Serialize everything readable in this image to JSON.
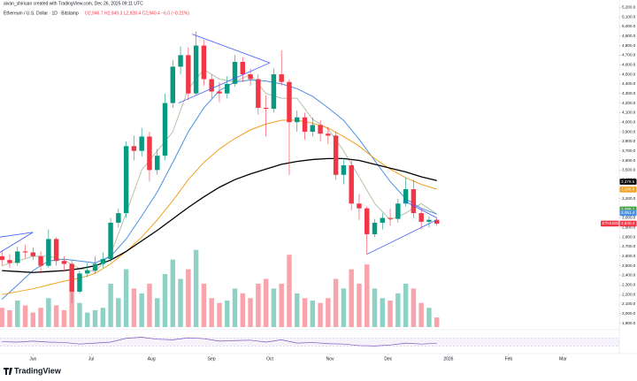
{
  "chart_data": {
    "type": "candlestick",
    "subtitle": "aivan_shiriuan created with TradingView.com, Dec 26, 2025 09:11 UTC",
    "title": "Ethereum / U.S. Dollar · 1D · Bitstamp",
    "ohlc_text": "O2,946.7 H2,949.3 L2,928.4 C2,940.4 −6.0 (−0.21%)",
    "x": [
      15,
      19,
      23,
      27,
      31,
      35,
      39,
      43,
      47,
      51,
      55,
      59,
      63,
      67,
      71,
      75,
      79,
      83,
      87,
      91,
      95,
      99,
      103,
      107,
      111,
      115,
      119,
      123,
      127,
      131,
      135,
      139,
      143,
      147,
      151,
      155,
      159,
      163,
      167,
      171,
      175,
      179,
      183,
      187,
      191,
      195,
      199,
      203,
      207,
      211,
      215,
      219,
      223,
      227,
      231,
      235,
      239
    ],
    "open": [
      2600,
      2560,
      2530,
      2650,
      2640,
      2600,
      2500,
      2780,
      2550,
      2520,
      2230,
      2420,
      2450,
      2520,
      2570,
      2950,
      3050,
      3750,
      3700,
      3850,
      3500,
      3650,
      4200,
      4580,
      4700,
      4300,
      4800,
      4450,
      4320,
      4300,
      4400,
      4630,
      4500,
      4450,
      4150,
      4140,
      4500,
      4420,
      4000,
      4050,
      3900,
      3970,
      3880,
      3860,
      3450,
      3550,
      3150,
      3100,
      2830,
      2950,
      3000,
      2990,
      3150,
      3300,
      3050,
      2960,
      2980
    ],
    "high": [
      2660,
      2620,
      2700,
      2720,
      2690,
      2650,
      2880,
      2800,
      2600,
      2560,
      2450,
      2530,
      2600,
      2640,
      3000,
      3100,
      3800,
      3860,
      3940,
      3900,
      3720,
      4300,
      4650,
      4790,
      4780,
      4950,
      4860,
      4500,
      4420,
      4480,
      4700,
      4680,
      4560,
      4500,
      4280,
      4560,
      4750,
      4450,
      4120,
      4100,
      4050,
      4020,
      3950,
      3900,
      3620,
      3600,
      3250,
      3120,
      2990,
      3050,
      3100,
      3200,
      3420,
      3400,
      3100,
      3020,
      3000
    ],
    "low": [
      2500,
      2480,
      2500,
      2580,
      2560,
      2420,
      2480,
      2500,
      2440,
      2110,
      2210,
      2380,
      2420,
      2480,
      2540,
      2900,
      3000,
      3600,
      3640,
      3380,
      3450,
      3600,
      4150,
      4500,
      4230,
      4280,
      4380,
      4250,
      4210,
      4250,
      4370,
      4420,
      4380,
      4080,
      3850,
      4100,
      4380,
      3450,
      3900,
      3820,
      3850,
      3800,
      3770,
      3400,
      3350,
      3080,
      2980,
      2620,
      2800,
      2880,
      2920,
      2950,
      3120,
      3000,
      2880,
      2900,
      2920
    ],
    "close": [
      2560,
      2530,
      2650,
      2640,
      2600,
      2500,
      2780,
      2550,
      2520,
      2230,
      2420,
      2450,
      2520,
      2570,
      2950,
      3050,
      3750,
      3700,
      3850,
      3500,
      3650,
      4200,
      4580,
      4700,
      4300,
      4800,
      4450,
      4320,
      4300,
      4400,
      4630,
      4500,
      4450,
      4150,
      4140,
      4500,
      4420,
      4000,
      4050,
      3900,
      3970,
      3880,
      3860,
      3450,
      3550,
      3150,
      3100,
      2830,
      2950,
      3000,
      2990,
      3150,
      3300,
      3050,
      2960,
      2980,
      2940
    ],
    "volume": [
      40,
      35,
      55,
      45,
      30,
      40,
      60,
      45,
      35,
      80,
      50,
      30,
      35,
      40,
      90,
      60,
      120,
      80,
      70,
      90,
      60,
      110,
      140,
      100,
      120,
      160,
      90,
      60,
      50,
      55,
      80,
      70,
      60,
      90,
      100,
      80,
      90,
      150,
      70,
      60,
      55,
      50,
      60,
      100,
      80,
      120,
      90,
      130,
      80,
      60,
      55,
      70,
      90,
      80,
      50,
      40,
      20
    ],
    "volume_ylim": [
      0,
      220
    ],
    "up_color": "#089981",
    "down_color": "#f23645",
    "xlim": [
      14,
      333
    ],
    "xticks": [
      {
        "value": 31,
        "label": "Jun"
      },
      {
        "value": 61,
        "label": "Jul"
      },
      {
        "value": 92,
        "label": "Aug"
      },
      {
        "value": 123,
        "label": "Sep"
      },
      {
        "value": 153,
        "label": "Oct"
      },
      {
        "value": 184,
        "label": "Nov"
      },
      {
        "value": 214,
        "label": "Dec"
      },
      {
        "value": 245,
        "label": "2026"
      },
      {
        "value": 276,
        "label": "Feb"
      },
      {
        "value": 304,
        "label": "Mar"
      }
    ],
    "ylim": [
      1860,
      5230
    ],
    "yticks": [
      {
        "value": 1900,
        "label": "1,900.0"
      },
      {
        "value": 2000,
        "label": "2,000.0"
      },
      {
        "value": 2100,
        "label": "2,100.0"
      },
      {
        "value": 2200,
        "label": "2,200.0"
      },
      {
        "value": 2300,
        "label": "2,300.0"
      },
      {
        "value": 2400,
        "label": "2,400.0"
      },
      {
        "value": 2500,
        "label": "2,500.0"
      },
      {
        "value": 2600,
        "label": "2,600.0"
      },
      {
        "value": 2700,
        "label": "2,700.0"
      },
      {
        "value": 2800,
        "label": "2,800.0"
      },
      {
        "value": 2900,
        "label": "2,900.0"
      },
      {
        "value": 3000,
        "label": "3,000.0"
      },
      {
        "value": 3100,
        "label": "3,100.0"
      },
      {
        "value": 3200,
        "label": "3,200.0"
      },
      {
        "value": 3300,
        "label": "3,300.0"
      },
      {
        "value": 3400,
        "label": "3,400.0"
      },
      {
        "value": 3500,
        "label": "3,500.0"
      },
      {
        "value": 3600,
        "label": "3,600.0"
      },
      {
        "value": 3700,
        "label": "3,700.0"
      },
      {
        "value": 3800,
        "label": "3,800.0"
      },
      {
        "value": 3900,
        "label": "3,900.0"
      },
      {
        "value": 4000,
        "label": "4,000.0"
      },
      {
        "value": 4100,
        "label": "4,100.0"
      },
      {
        "value": 4200,
        "label": "4,200.0"
      },
      {
        "value": 4300,
        "label": "4,300.0"
      },
      {
        "value": 4400,
        "label": "4,400.0"
      },
      {
        "value": 4500,
        "label": "4,500.0"
      },
      {
        "value": 4600,
        "label": "4,600.0"
      },
      {
        "value": 4700,
        "label": "4,700.0"
      },
      {
        "value": 4800,
        "label": "4,800.0"
      },
      {
        "value": 4900,
        "label": "4,900.0"
      },
      {
        "value": 5000,
        "label": "5,000.0"
      },
      {
        "value": 5100,
        "label": "5,100.0"
      },
      {
        "value": 5200,
        "label": "5,200.0"
      }
    ],
    "grid": false,
    "moving_averages": {
      "x": [
        15,
        23,
        31,
        39,
        47,
        55,
        63,
        71,
        79,
        87,
        95,
        103,
        111,
        119,
        127,
        135,
        143,
        151,
        159,
        167,
        175,
        183,
        191,
        199,
        207,
        215,
        223,
        231,
        239
      ],
      "series": [
        {
          "color": "#b5c4a8",
          "values": [
            2500,
            2550,
            2600,
            2600,
            2560,
            2470,
            2440,
            2620,
            3050,
            3500,
            3700,
            3900,
            4350,
            4550,
            4450,
            4420,
            4500,
            4300,
            4250,
            4250,
            4030,
            3930,
            3700,
            3430,
            3150,
            2980,
            3050,
            3150,
            3040
          ]
        },
        {
          "color": "#4a90e2",
          "values": [
            2150,
            2300,
            2450,
            2550,
            2570,
            2550,
            2530,
            2600,
            2780,
            3020,
            3270,
            3580,
            3900,
            4150,
            4330,
            4420,
            4440,
            4430,
            4400,
            4350,
            4270,
            4150,
            4020,
            3820,
            3600,
            3380,
            3200,
            3100,
            3040
          ]
        },
        {
          "color": "#f0a020",
          "values": [
            2200,
            2230,
            2260,
            2300,
            2340,
            2370,
            2420,
            2520,
            2650,
            2800,
            2980,
            3180,
            3400,
            3580,
            3720,
            3830,
            3920,
            3980,
            4020,
            4020,
            3990,
            3940,
            3850,
            3750,
            3620,
            3510,
            3420,
            3350,
            3300
          ]
        },
        {
          "color": "#000000",
          "values": [
            2450,
            2440,
            2430,
            2440,
            2450,
            2470,
            2500,
            2560,
            2650,
            2760,
            2870,
            2990,
            3110,
            3220,
            3320,
            3400,
            3460,
            3510,
            3560,
            3590,
            3610,
            3620,
            3620,
            3600,
            3560,
            3520,
            3480,
            3430,
            3390
          ]
        }
      ]
    },
    "trendline_color": "#3d5afe",
    "trendlines": [
      {
        "x": [
          14,
          31
        ],
        "values": [
          2640,
          2850
        ]
      },
      {
        "x": [
          14,
          31
        ],
        "values": [
          2800,
          2850
        ]
      },
      {
        "x": [
          106,
          153
        ],
        "values": [
          4200,
          4620
        ]
      },
      {
        "x": [
          113,
          153
        ],
        "values": [
          4920,
          4620
        ]
      },
      {
        "x": [
          203,
          239
        ],
        "values": [
          2620,
          2980
        ]
      },
      {
        "x": [
          222,
          239
        ],
        "values": [
          3180,
          3000
        ]
      }
    ],
    "price_tags": [
      {
        "value": 3378.5,
        "label": "3,378.5",
        "color": "#000000"
      },
      {
        "value": 3296.8,
        "label": "3,296.8",
        "color": "#f0a020"
      },
      {
        "value": 3088.1,
        "label": "3,088.1",
        "color": "#43a047"
      },
      {
        "value": 3051.4,
        "label": "3,051.4",
        "color": "#4a90e2"
      },
      {
        "value": 2940.4,
        "label": "2,940.4",
        "color": "#f23645"
      }
    ],
    "symbol_tag": "ETHUSD",
    "rsi": {
      "x": [
        15,
        23,
        31,
        39,
        47,
        55,
        63,
        71,
        79,
        87,
        95,
        103,
        111,
        119,
        127,
        135,
        143,
        151,
        159,
        167,
        175,
        183,
        191,
        199,
        207,
        215,
        223,
        231,
        239
      ],
      "values": [
        52,
        50,
        55,
        50,
        48,
        40,
        45,
        50,
        70,
        75,
        65,
        62,
        72,
        68,
        55,
        58,
        60,
        50,
        62,
        45,
        48,
        42,
        40,
        32,
        30,
        35,
        45,
        40,
        44
      ],
      "ylim": [
        0,
        100
      ],
      "band": [
        30,
        70
      ],
      "color": "#7e57c2"
    },
    "brand": "TradingView"
  }
}
